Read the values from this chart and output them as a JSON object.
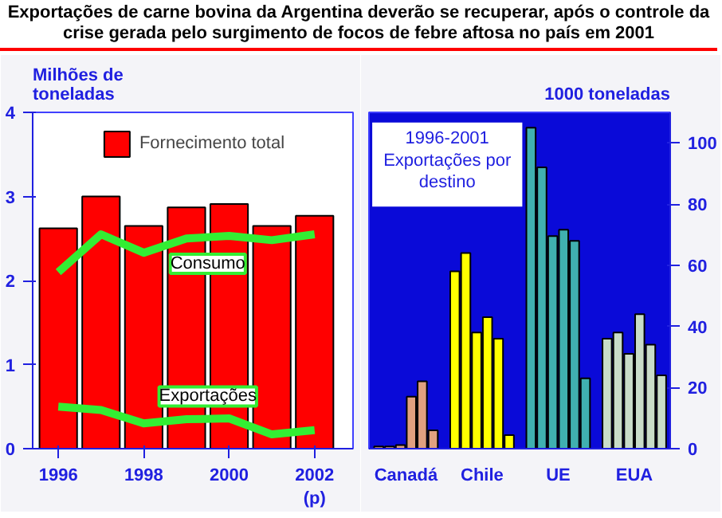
{
  "chart_data": [
    {
      "type": "bar",
      "title": "Exportações de carne bovina da Argentina deverão se recuperar, após o controle da crise gerada pelo surgimento de focos de febre aftosa no país em 2001",
      "ylabel": "Milhões de\ntoneladas",
      "x": [
        1996,
        1997,
        1998,
        1999,
        2000,
        2001,
        2002
      ],
      "xlim": [
        1995.4,
        2002.9
      ],
      "xticks": [
        1996,
        1998,
        2000,
        {
          "value": 2002,
          "label": "2002\n(p)"
        }
      ],
      "ylim": [
        0,
        4
      ],
      "yticks": [
        0,
        1,
        2,
        3,
        4
      ],
      "legend": "top",
      "series": [
        {
          "name": "Fornecimento total",
          "type": "bar",
          "color": "#ff0000",
          "values": [
            2.62,
            3.0,
            2.65,
            2.87,
            2.91,
            2.65,
            2.77
          ]
        },
        {
          "name": "Consumo",
          "type": "line",
          "color": "#33ee33",
          "values": [
            2.1,
            2.55,
            2.33,
            2.5,
            2.53,
            2.48,
            2.55
          ]
        },
        {
          "name": "Exportações",
          "type": "line",
          "color": "#33ee33",
          "values": [
            0.5,
            0.46,
            0.3,
            0.35,
            0.36,
            0.17,
            0.22
          ]
        }
      ]
    },
    {
      "type": "bar",
      "ylabel": "1000 toneladas",
      "annotations": [
        "1996-2001\nExportações por\ndestino"
      ],
      "categories": [
        "Canadá",
        "Chile",
        "UE",
        "EUA"
      ],
      "ylim": [
        0,
        110
      ],
      "yticks": [
        0,
        20,
        40,
        60,
        80,
        100
      ],
      "series": [
        {
          "colors": [
            "#e0a080",
            "#ffff00",
            "#40b0b0",
            "#c8dcc8"
          ],
          "values": [
            0.7,
            58,
            105,
            36
          ]
        },
        {
          "colors": [
            "#e0a080",
            "#ffff00",
            "#40b0b0",
            "#c8dcc8"
          ],
          "values": [
            0.7,
            64,
            92,
            38
          ]
        },
        {
          "colors": [
            "#e0a080",
            "#ffff00",
            "#40b0b0",
            "#c8dcc8"
          ],
          "values": [
            1.2,
            38,
            69.5,
            31
          ]
        },
        {
          "colors": [
            "#e0a080",
            "#ffff00",
            "#40b0b0",
            "#c8dcc8"
          ],
          "values": [
            17,
            43,
            71.6,
            44
          ]
        },
        {
          "colors": [
            "#e0a080",
            "#ffff00",
            "#40b0b0",
            "#c8dcc8"
          ],
          "values": [
            22,
            36,
            68,
            34
          ]
        },
        {
          "colors": [
            "#e0a080",
            "#ffff00",
            "#40b0b0",
            "#c8dcc8"
          ],
          "values": [
            6,
            4.4,
            23,
            24
          ]
        }
      ]
    }
  ]
}
